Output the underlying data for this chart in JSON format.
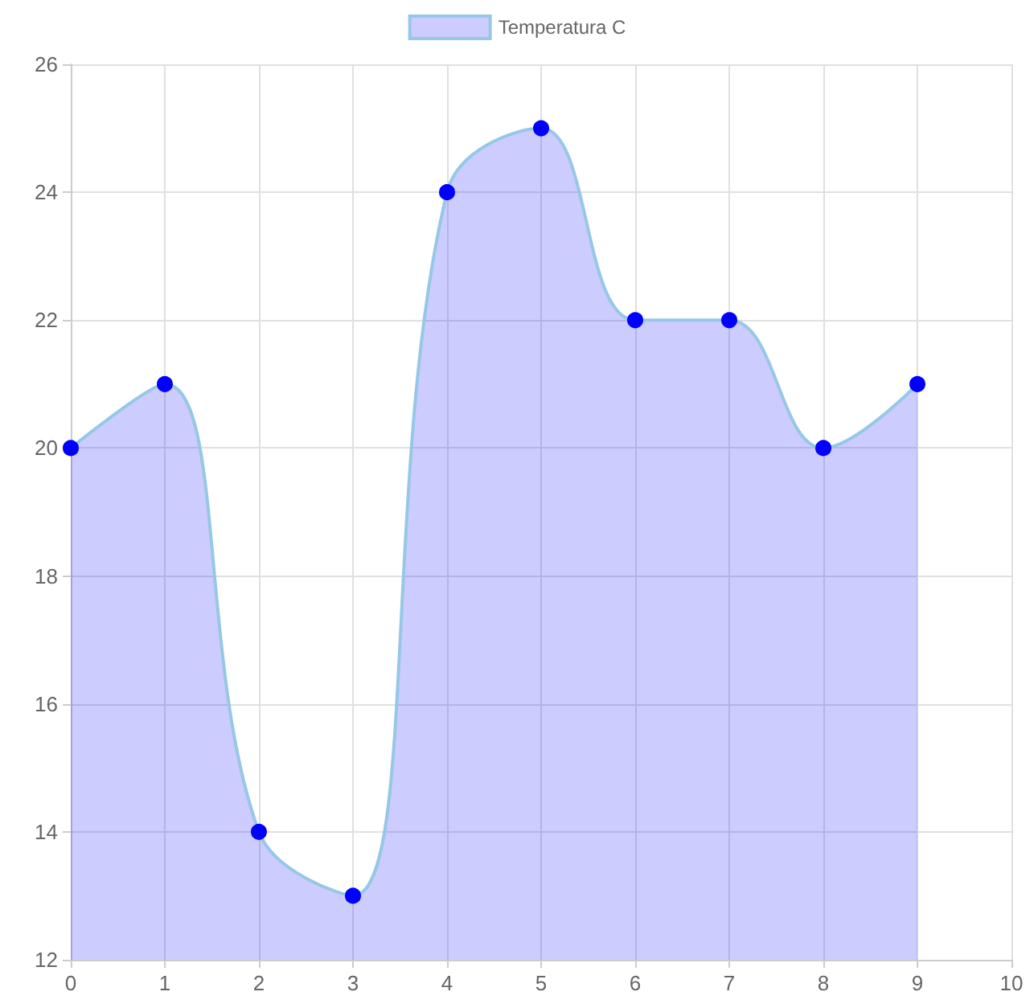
{
  "chart_data": {
    "type": "area",
    "x": [
      0,
      1,
      2,
      3,
      4,
      5,
      6,
      7,
      8,
      9
    ],
    "series": [
      {
        "name": "Temperatura C",
        "color": "#0000ff",
        "values": [
          20,
          21,
          14,
          13,
          24,
          25,
          22,
          22,
          20,
          21
        ]
      }
    ],
    "xlim": [
      0,
      10
    ],
    "xticks": [
      0,
      1,
      2,
      3,
      4,
      5,
      6,
      7,
      8,
      9,
      10
    ],
    "ylim": [
      12,
      26
    ],
    "yticks": [
      12,
      14,
      16,
      18,
      20,
      22,
      24,
      26
    ],
    "grid": true,
    "legend": "top",
    "marker": "circle"
  }
}
